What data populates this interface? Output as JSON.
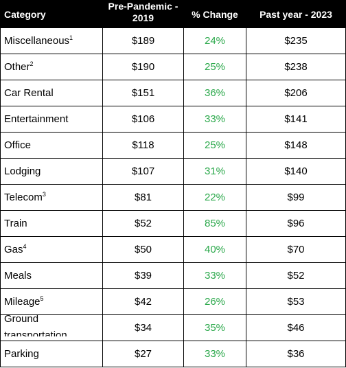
{
  "table": {
    "headers": {
      "category": "Category",
      "pre_pandemic": "Pre-Pandemic - 2019",
      "change": "% Change",
      "past_year": "Past year - 2023"
    },
    "rows": [
      {
        "category": "Miscellaneous",
        "sup": "1",
        "pre": "$189",
        "change": "24%",
        "past": "$235"
      },
      {
        "category": "Other",
        "sup": "2",
        "pre": "$190",
        "change": "25%",
        "past": "$238"
      },
      {
        "category": "Car Rental",
        "sup": "",
        "pre": "$151",
        "change": "36%",
        "past": "$206"
      },
      {
        "category": "Entertainment",
        "sup": "",
        "pre": "$106",
        "change": "33%",
        "past": "$141"
      },
      {
        "category": "Office",
        "sup": "",
        "pre": "$118",
        "change": "25%",
        "past": "$148"
      },
      {
        "category": "Lodging",
        "sup": "",
        "pre": "$107",
        "change": "31%",
        "past": "$140"
      },
      {
        "category": "Telecom",
        "sup": "3",
        "pre": "$81",
        "change": "22%",
        "past": "$99"
      },
      {
        "category": "Train",
        "sup": "",
        "pre": "$52",
        "change": "85%",
        "past": "$96"
      },
      {
        "category": "Gas",
        "sup": "4",
        "pre": "$50",
        "change": "40%",
        "past": "$70"
      },
      {
        "category": "Meals",
        "sup": "",
        "pre": "$39",
        "change": "33%",
        "past": "$52"
      },
      {
        "category": "Mileage",
        "sup": "5",
        "pre": "$42",
        "change": "26%",
        "past": "$53"
      },
      {
        "category": "Ground transportation",
        "sup": "",
        "pre": "$34",
        "change": "35%",
        "past": "$46"
      },
      {
        "category": "Parking",
        "sup": "",
        "pre": "$27",
        "change": "33%",
        "past": "$36"
      }
    ]
  },
  "colors": {
    "header_bg": "#000000",
    "header_text": "#ffffff",
    "change_text": "#2aa84a"
  }
}
